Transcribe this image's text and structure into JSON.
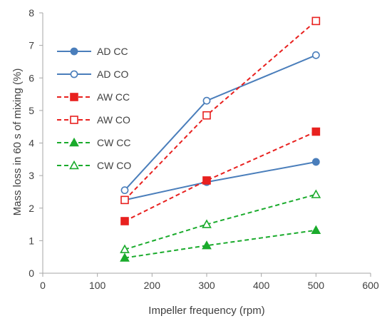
{
  "chart_data": {
    "type": "line",
    "xlabel": "Impeller frequency (rpm)",
    "ylabel": "Mass loss in 60 s of mixing (%)",
    "xlim": [
      0,
      600
    ],
    "ylim": [
      0,
      8
    ],
    "xticks": [
      "0",
      "100",
      "200",
      "300",
      "400",
      "500",
      "600"
    ],
    "yticks": [
      "0",
      "1",
      "2",
      "3",
      "4",
      "5",
      "6",
      "7",
      "8"
    ],
    "grid": false,
    "legend_position": "top-left",
    "x": [
      150,
      300,
      500
    ],
    "series": [
      {
        "name": "AD CC",
        "values": [
          2.25,
          2.8,
          3.42
        ],
        "color": "#4a7ebb",
        "dash": "solid",
        "marker": "circle",
        "filled": true
      },
      {
        "name": "AD CO",
        "values": [
          2.55,
          5.3,
          6.7
        ],
        "color": "#4a7ebb",
        "dash": "solid",
        "marker": "circle",
        "filled": false
      },
      {
        "name": "AW CC",
        "values": [
          1.6,
          2.85,
          4.35
        ],
        "color": "#e8211f",
        "dash": "dashed",
        "marker": "square",
        "filled": true
      },
      {
        "name": "AW CO",
        "values": [
          2.25,
          4.85,
          7.75
        ],
        "color": "#e8211f",
        "dash": "dashed",
        "marker": "square",
        "filled": false
      },
      {
        "name": "CW CC",
        "values": [
          0.47,
          0.85,
          1.32
        ],
        "color": "#1aab2c",
        "dash": "dashed",
        "marker": "triangle",
        "filled": true
      },
      {
        "name": "CW CO",
        "values": [
          0.73,
          1.5,
          2.42
        ],
        "color": "#1aab2c",
        "dash": "dashed",
        "marker": "triangle",
        "filled": false
      }
    ]
  }
}
